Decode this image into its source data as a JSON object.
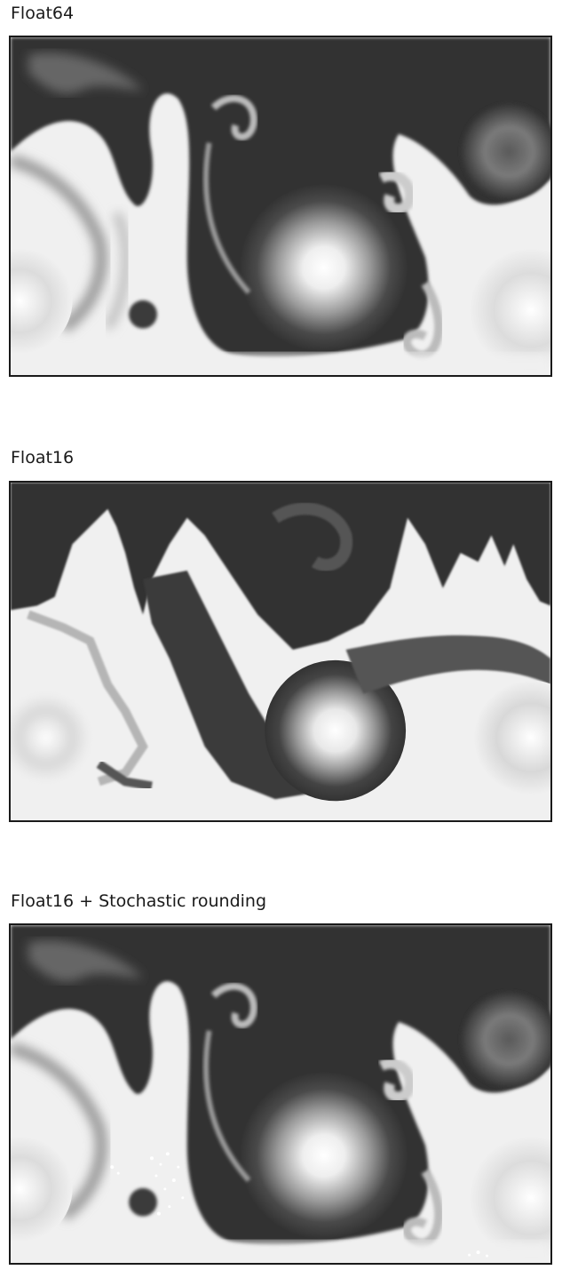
{
  "panels": [
    {
      "title": "Float64",
      "variant": "smooth"
    },
    {
      "title": "Float16",
      "variant": "quantized"
    },
    {
      "title": "Float16 + Stochastic rounding",
      "variant": "smooth-noisy"
    }
  ],
  "colors": {
    "dark": "#333333",
    "light": "#f0f0f0",
    "frame": "#1a1a1a",
    "mid": "#8a8a8a"
  }
}
